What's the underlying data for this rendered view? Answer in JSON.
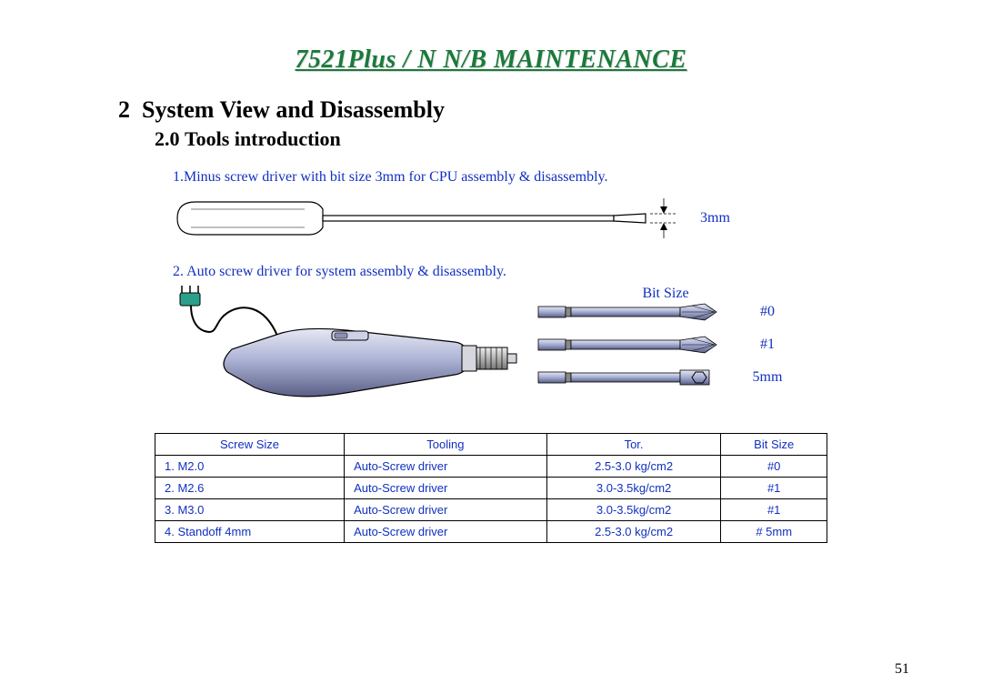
{
  "title": "7521Plus / N  N/B  MAINTENANCE",
  "section_number": "2",
  "section_title": "System View and Disassembly",
  "subsection_number": "2.0",
  "subsection_title": "Tools introduction",
  "item1_text": "1.Minus screw driver with bit size 3mm for CPU assembly & disassembly.",
  "item1_dim": "3mm",
  "item2_text": "2. Auto screw driver for system assembly & disassembly.",
  "bits_header": "Bit Size",
  "bits": [
    {
      "label": "#0",
      "type": "phillips"
    },
    {
      "label": "#1",
      "type": "phillips"
    },
    {
      "label": "5mm",
      "type": "hex"
    }
  ],
  "table": {
    "columns": [
      "Screw Size",
      "Tooling",
      "Tor.",
      "Bit Size"
    ],
    "rows": [
      [
        "1.  M2.0",
        "Auto-Screw driver",
        "2.5-3.0 kg/cm2",
        "#0"
      ],
      [
        "2.  M2.6",
        "Auto-Screw driver",
        "3.0-3.5kg/cm2",
        "#1"
      ],
      [
        "3.  M3.0",
        "Auto-Screw driver",
        "3.0-3.5kg/cm2",
        "#1"
      ],
      [
        "4. Standoff 4mm",
        "Auto-Screw driver",
        "2.5-3.0 kg/cm2",
        "# 5mm"
      ]
    ],
    "col_align": [
      "left",
      "left",
      "center",
      "center"
    ]
  },
  "page_number": "51",
  "colors": {
    "title": "#1a7a3a",
    "body_blue": "#1030c0",
    "black": "#000000",
    "steel_light": "#b8c0d8",
    "steel_dark": "#6a7aa6",
    "handle_light": "#cfd2e6",
    "handle_dark": "#5a5f86",
    "plug_teal": "#2aa08a"
  }
}
